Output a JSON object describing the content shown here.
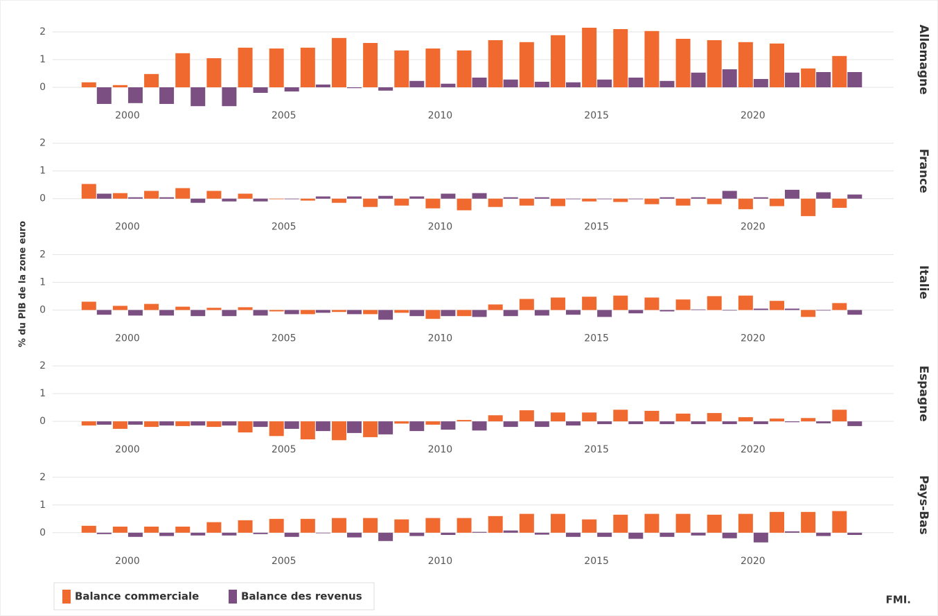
{
  "chart_data": {
    "type": "bar",
    "y_label": "% du PIB de la zone euro",
    "source": "FMI.",
    "x": [
      1999,
      2000,
      2001,
      2002,
      2003,
      2004,
      2005,
      2006,
      2007,
      2008,
      2009,
      2010,
      2011,
      2012,
      2013,
      2014,
      2015,
      2016,
      2017,
      2018,
      2019,
      2020,
      2021,
      2022,
      2023
    ],
    "xlim": [
      1997.6,
      2024.5
    ],
    "xticks": [
      2000,
      2005,
      2010,
      2015,
      2020
    ],
    "ylim": [
      -0.8,
      2.2
    ],
    "yticks": [
      0,
      1,
      2
    ],
    "grid": true,
    "series": [
      {
        "name": "Balance commerciale",
        "color": "#f06a2f"
      },
      {
        "name": "Balance des revenus",
        "color": "#7b4f82"
      }
    ],
    "panels": [
      {
        "title": "Allemagne",
        "series": [
          {
            "values": [
              0.18,
              0.08,
              0.48,
              1.23,
              1.05,
              1.43,
              1.4,
              1.43,
              1.78,
              1.6,
              1.33,
              1.4,
              1.33,
              1.7,
              1.63,
              1.88,
              2.15,
              2.1,
              2.03,
              1.75,
              1.7,
              1.63,
              1.58,
              0.68,
              1.13
            ]
          },
          {
            "values": [
              -0.6,
              -0.57,
              -0.6,
              -0.68,
              -0.68,
              -0.2,
              -0.15,
              0.1,
              -0.03,
              -0.12,
              0.23,
              0.13,
              0.35,
              0.28,
              0.2,
              0.18,
              0.28,
              0.35,
              0.23,
              0.53,
              0.65,
              0.3,
              0.53,
              0.55,
              0.55
            ]
          }
        ]
      },
      {
        "title": "France",
        "series": [
          {
            "values": [
              0.53,
              0.2,
              0.28,
              0.38,
              0.28,
              0.18,
              -0.02,
              -0.07,
              -0.15,
              -0.3,
              -0.25,
              -0.35,
              -0.42,
              -0.3,
              -0.25,
              -0.27,
              -0.1,
              -0.12,
              -0.2,
              -0.25,
              -0.2,
              -0.38,
              -0.27,
              -0.63,
              -0.33
            ]
          },
          {
            "values": [
              0.18,
              0.05,
              0.05,
              -0.15,
              -0.1,
              -0.1,
              -0.02,
              0.08,
              0.08,
              0.1,
              0.08,
              0.18,
              0.2,
              0.05,
              0.05,
              -0.02,
              -0.02,
              -0.02,
              0.05,
              0.05,
              0.28,
              0.05,
              0.32,
              0.23,
              0.15
            ]
          }
        ]
      },
      {
        "title": "Italie",
        "series": [
          {
            "values": [
              0.3,
              0.15,
              0.22,
              0.12,
              0.08,
              0.1,
              -0.05,
              -0.15,
              -0.07,
              -0.15,
              -0.1,
              -0.32,
              -0.22,
              0.2,
              0.4,
              0.45,
              0.48,
              0.52,
              0.45,
              0.38,
              0.5,
              0.52,
              0.33,
              -0.25,
              0.25
            ]
          },
          {
            "values": [
              -0.17,
              -0.2,
              -0.2,
              -0.22,
              -0.22,
              -0.2,
              -0.15,
              -0.1,
              -0.15,
              -0.35,
              -0.22,
              -0.22,
              -0.25,
              -0.22,
              -0.2,
              -0.17,
              -0.25,
              -0.12,
              -0.05,
              0.02,
              -0.02,
              0.05,
              0.05,
              -0.02,
              -0.17
            ]
          }
        ]
      },
      {
        "title": "Espagne",
        "series": [
          {
            "values": [
              -0.15,
              -0.27,
              -0.2,
              -0.17,
              -0.2,
              -0.4,
              -0.53,
              -0.65,
              -0.68,
              -0.57,
              -0.08,
              -0.12,
              0.05,
              0.22,
              0.4,
              0.32,
              0.32,
              0.42,
              0.38,
              0.28,
              0.3,
              0.15,
              0.1,
              0.12,
              0.42
            ]
          },
          {
            "values": [
              -0.12,
              -0.12,
              -0.15,
              -0.15,
              -0.15,
              -0.2,
              -0.27,
              -0.35,
              -0.42,
              -0.47,
              -0.35,
              -0.3,
              -0.33,
              -0.2,
              -0.2,
              -0.15,
              -0.1,
              -0.1,
              -0.1,
              -0.1,
              -0.1,
              -0.1,
              -0.03,
              -0.07,
              -0.17
            ]
          }
        ]
      },
      {
        "title": "Pays-Bas",
        "series": [
          {
            "values": [
              0.25,
              0.22,
              0.22,
              0.22,
              0.38,
              0.45,
              0.5,
              0.5,
              0.53,
              0.53,
              0.48,
              0.53,
              0.53,
              0.6,
              0.68,
              0.68,
              0.48,
              0.65,
              0.68,
              0.68,
              0.65,
              0.68,
              0.75,
              0.75,
              0.78
            ]
          },
          {
            "values": [
              -0.05,
              -0.15,
              -0.12,
              -0.1,
              -0.1,
              -0.05,
              -0.15,
              -0.02,
              -0.17,
              -0.3,
              -0.12,
              -0.08,
              0.03,
              0.08,
              -0.07,
              -0.15,
              -0.15,
              -0.22,
              -0.15,
              -0.1,
              -0.2,
              -0.35,
              0.05,
              -0.12,
              -0.08
            ]
          }
        ]
      }
    ]
  }
}
